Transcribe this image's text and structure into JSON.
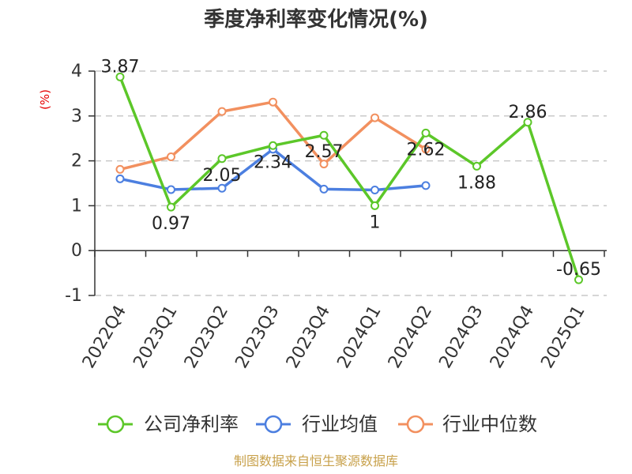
{
  "chart_data": {
    "type": "line",
    "title": "季度净利率变化情况(%)",
    "ylabel": "(%)",
    "categories": [
      "2022Q4",
      "2023Q1",
      "2023Q2",
      "2023Q3",
      "2023Q4",
      "2024Q1",
      "2024Q2",
      "2024Q3",
      "2024Q4",
      "2025Q1"
    ],
    "ylim": [
      -1,
      4
    ],
    "yticks": [
      -1,
      0,
      1,
      2,
      3,
      4
    ],
    "grid": true,
    "legend_position": "bottom",
    "series": [
      {
        "name": "公司净利率",
        "color": "#5cc729",
        "values": [
          3.87,
          0.97,
          2.05,
          2.34,
          2.57,
          1,
          2.62,
          1.88,
          2.86,
          -0.65
        ],
        "labels": [
          "3.87",
          "0.97",
          "2.05",
          "2.34",
          "2.57",
          "1",
          "2.62",
          "1.88",
          "2.86",
          "-0.65"
        ]
      },
      {
        "name": "行业均值",
        "color": "#4c7fe0",
        "values": [
          1.6,
          1.36,
          1.39,
          2.26,
          1.37,
          1.35,
          1.45,
          null,
          null,
          null
        ]
      },
      {
        "name": "行业中位数",
        "color": "#f2905f",
        "values": [
          1.81,
          2.09,
          3.1,
          3.31,
          1.93,
          2.96,
          2.26,
          null,
          null,
          null
        ]
      }
    ],
    "source": "制图数据来自恒生聚源数据库"
  }
}
